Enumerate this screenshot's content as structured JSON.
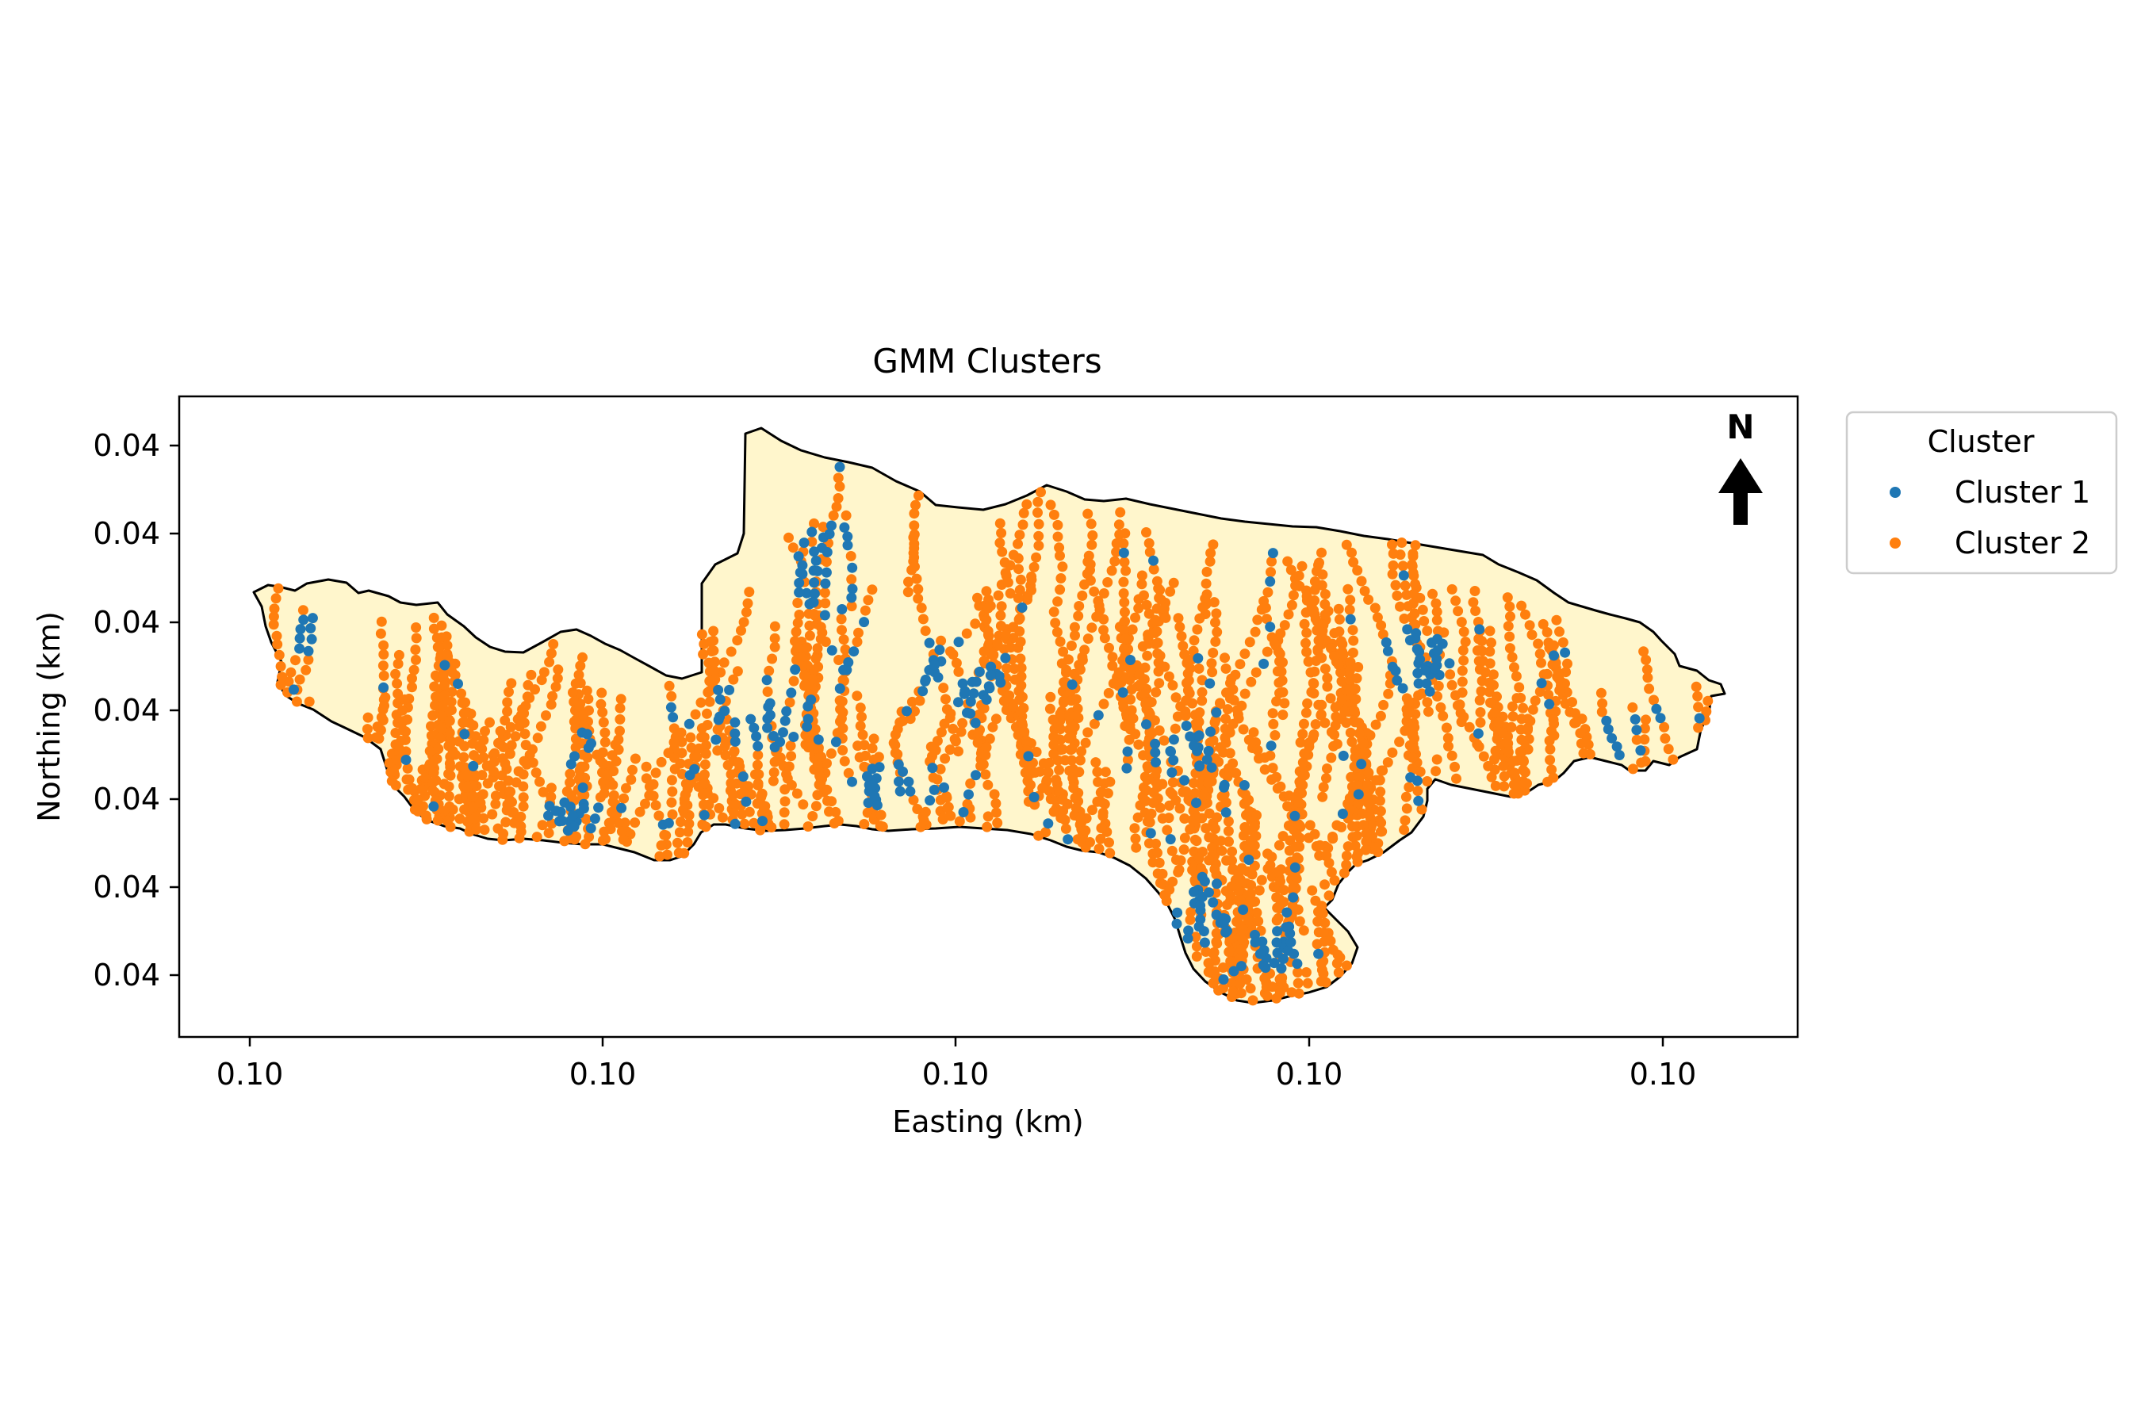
{
  "figure": {
    "title": "GMM Clusters",
    "xlabel": "Easting (km)",
    "ylabel": "Northing (km)",
    "north_label": "N"
  },
  "legend": {
    "title": "Cluster",
    "items": [
      {
        "label": "Cluster 1",
        "color": "#1f77b4"
      },
      {
        "label": "Cluster 2",
        "color": "#ff7f0e"
      }
    ]
  },
  "chart_data": {
    "type": "scatter",
    "title": "GMM Clusters",
    "xlabel": "Easting (km)",
    "ylabel": "Northing (km)",
    "x_ticks": [
      "0.10",
      "0.10",
      "0.10",
      "0.10",
      "0.10"
    ],
    "y_ticks": [
      "0.04",
      "0.04",
      "0.04",
      "0.04",
      "0.04",
      "0.04",
      "0.04"
    ],
    "basin_fill": "#fff6cc",
    "grid": false,
    "legend_placement": "outside-top-right",
    "series": [
      {
        "name": "Cluster 1",
        "color": "#1f77b4"
      },
      {
        "name": "Cluster 2",
        "color": "#ff7f0e"
      }
    ]
  }
}
